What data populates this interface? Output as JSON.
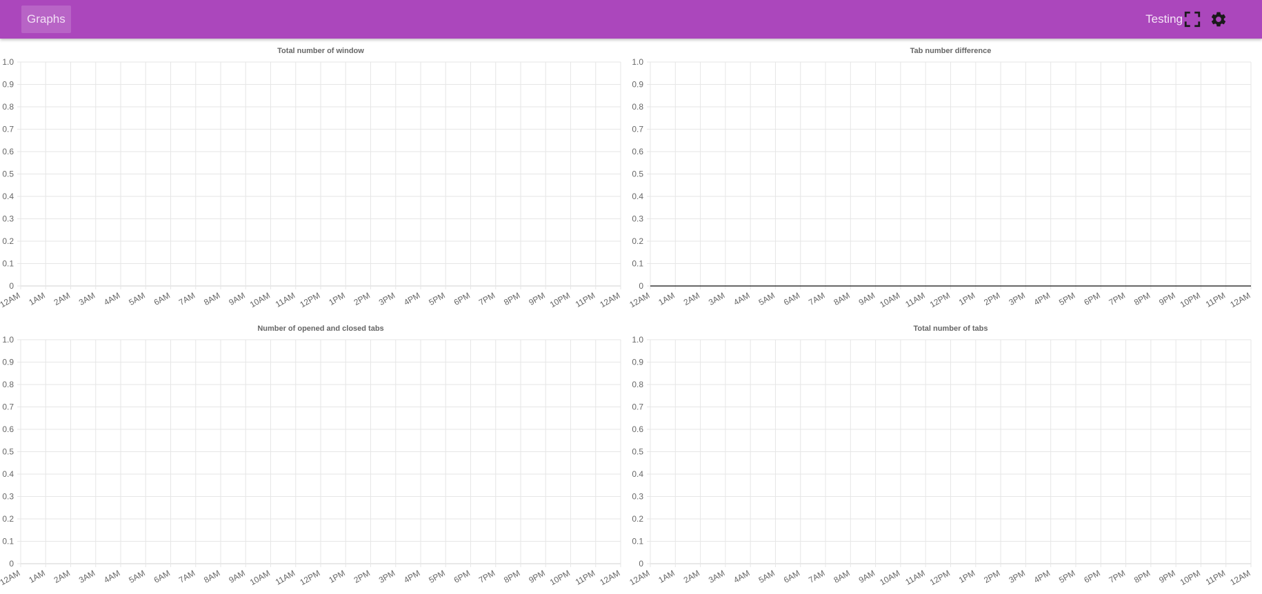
{
  "header": {
    "tab_label": "Graphs",
    "profile_label": "Testing",
    "fullscreen_icon": "fullscreen-icon",
    "settings_icon": "gear-icon",
    "bar_color": "#ab47bc"
  },
  "chart_data": [
    {
      "type": "line",
      "title": "Total number of window",
      "categories": [
        "12AM",
        "1AM",
        "2AM",
        "3AM",
        "4AM",
        "5AM",
        "6AM",
        "7AM",
        "8AM",
        "9AM",
        "10AM",
        "11AM",
        "12PM",
        "1PM",
        "2PM",
        "3PM",
        "4PM",
        "5PM",
        "6PM",
        "7PM",
        "8PM",
        "9PM",
        "10PM",
        "11PM",
        "12AM"
      ],
      "y_ticks": [
        "0",
        "0.1",
        "0.2",
        "0.3",
        "0.4",
        "0.5",
        "0.6",
        "0.7",
        "0.8",
        "0.9",
        "1.0"
      ],
      "ylim": [
        0,
        1
      ],
      "grid": true,
      "series": []
    },
    {
      "type": "line",
      "title": "Tab number difference",
      "categories": [
        "12AM",
        "1AM",
        "2AM",
        "3AM",
        "4AM",
        "5AM",
        "6AM",
        "7AM",
        "8AM",
        "9AM",
        "10AM",
        "11AM",
        "12PM",
        "1PM",
        "2PM",
        "3PM",
        "4PM",
        "5PM",
        "6PM",
        "7PM",
        "8PM",
        "9PM",
        "10PM",
        "11PM",
        "12AM"
      ],
      "y_ticks": [
        "0",
        "0.1",
        "0.2",
        "0.3",
        "0.4",
        "0.5",
        "0.6",
        "0.7",
        "0.8",
        "0.9",
        "1.0"
      ],
      "ylim": [
        0,
        1
      ],
      "grid": true,
      "series": [
        {
          "color": "#333333",
          "values": [
            0,
            0,
            0,
            0,
            0,
            0,
            0,
            0,
            0,
            0,
            0,
            0,
            0,
            0,
            0,
            0,
            0,
            0,
            0,
            0,
            0,
            0,
            0,
            0,
            0
          ]
        }
      ]
    },
    {
      "type": "line",
      "title": "Number of opened and closed tabs",
      "categories": [
        "12AM",
        "1AM",
        "2AM",
        "3AM",
        "4AM",
        "5AM",
        "6AM",
        "7AM",
        "8AM",
        "9AM",
        "10AM",
        "11AM",
        "12PM",
        "1PM",
        "2PM",
        "3PM",
        "4PM",
        "5PM",
        "6PM",
        "7PM",
        "8PM",
        "9PM",
        "10PM",
        "11PM",
        "12AM"
      ],
      "y_ticks": [
        "0",
        "0.1",
        "0.2",
        "0.3",
        "0.4",
        "0.5",
        "0.6",
        "0.7",
        "0.8",
        "0.9",
        "1.0"
      ],
      "ylim": [
        0,
        1
      ],
      "grid": true,
      "series": []
    },
    {
      "type": "line",
      "title": "Total number of tabs",
      "categories": [
        "12AM",
        "1AM",
        "2AM",
        "3AM",
        "4AM",
        "5AM",
        "6AM",
        "7AM",
        "8AM",
        "9AM",
        "10AM",
        "11AM",
        "12PM",
        "1PM",
        "2PM",
        "3PM",
        "4PM",
        "5PM",
        "6PM",
        "7PM",
        "8PM",
        "9PM",
        "10PM",
        "11PM",
        "12AM"
      ],
      "y_ticks": [
        "0",
        "0.1",
        "0.2",
        "0.3",
        "0.4",
        "0.5",
        "0.6",
        "0.7",
        "0.8",
        "0.9",
        "1.0"
      ],
      "ylim": [
        0,
        1
      ],
      "grid": true,
      "series": []
    }
  ]
}
